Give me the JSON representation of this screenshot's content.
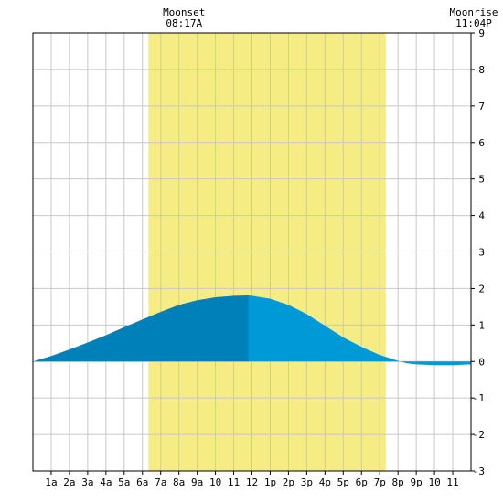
{
  "chart_data": {
    "type": "area",
    "title": "",
    "xlabel": "",
    "ylabel": "",
    "x_ticks": [
      "1a",
      "2a",
      "3a",
      "4a",
      "5a",
      "6a",
      "7a",
      "8a",
      "9a",
      "10",
      "11",
      "12",
      "1p",
      "2p",
      "3p",
      "4p",
      "5p",
      "6p",
      "7p",
      "8p",
      "9p",
      "10",
      "11"
    ],
    "xlim": [
      0,
      24
    ],
    "ylim": [
      -3,
      9
    ],
    "y_ticks": [
      -3,
      -2,
      -1,
      0,
      1,
      2,
      3,
      4,
      5,
      6,
      7,
      8,
      9
    ],
    "grid": true,
    "daylight": {
      "start": 6.33,
      "end": 19.33,
      "color": "#f5ec84"
    },
    "moon_events": [
      {
        "name": "Moonset",
        "time": "08:17A",
        "hour": 8.28
      },
      {
        "name": "Moonrise",
        "time": "11:04P",
        "hour": 23.07
      }
    ],
    "tide_series": {
      "x": [
        0,
        1,
        2,
        3,
        4,
        5,
        6,
        7,
        8,
        9,
        10,
        11,
        11.8,
        12,
        13,
        14,
        15,
        16,
        17,
        18,
        19,
        20,
        20.5,
        21,
        22,
        23,
        24
      ],
      "values": [
        0.0,
        0.15,
        0.33,
        0.52,
        0.72,
        0.94,
        1.15,
        1.36,
        1.55,
        1.68,
        1.76,
        1.8,
        1.81,
        1.8,
        1.72,
        1.55,
        1.3,
        0.98,
        0.66,
        0.4,
        0.18,
        0.02,
        -0.05,
        -0.08,
        -0.1,
        -0.1,
        -0.08
      ]
    },
    "peak_hour": 11.8,
    "colors": {
      "fill_before_peak": "#0080b8",
      "fill_after_peak": "#0099d8",
      "grid": "#c8c8c8",
      "frame": "#000000"
    }
  }
}
